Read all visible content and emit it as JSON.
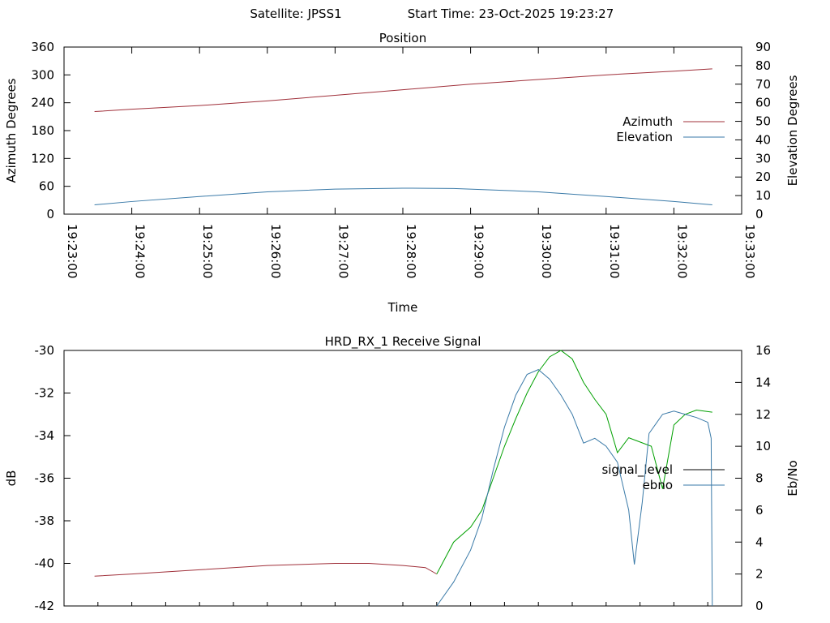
{
  "header": {
    "satellite_label": "Satellite: JPSS1",
    "start_time_label": "Start Time: 23-Oct-2025 19:23:27"
  },
  "chart_data": [
    {
      "type": "line",
      "title": "Position",
      "xlabel": "Time",
      "ylabel": "Azimuth Degrees",
      "y2label": "Elevation Degrees",
      "xlim": [
        "19:23:00",
        "19:33:00"
      ],
      "x_ticks": [
        "19:23:00",
        "19:24:00",
        "19:25:00",
        "19:26:00",
        "19:27:00",
        "19:28:00",
        "19:29:00",
        "19:30:00",
        "19:31:00",
        "19:32:00",
        "19:33:00"
      ],
      "ylim": [
        0,
        360
      ],
      "y_ticks": [
        0,
        60,
        120,
        180,
        240,
        300,
        360
      ],
      "y2lim": [
        0,
        90
      ],
      "y2_ticks": [
        0,
        10,
        20,
        30,
        40,
        50,
        60,
        70,
        80,
        90
      ],
      "grid": false,
      "legend_position": "right",
      "series": [
        {
          "name": "Azimuth",
          "axis": "y",
          "color": "#a0303a",
          "x": [
            "19:23:27",
            "19:24:00",
            "19:25:00",
            "19:26:00",
            "19:27:00",
            "19:28:00",
            "19:29:00",
            "19:30:00",
            "19:31:00",
            "19:32:00",
            "19:32:34"
          ],
          "values": [
            221,
            226,
            234,
            244,
            256,
            268,
            280,
            290,
            300,
            308,
            313
          ]
        },
        {
          "name": "Elevation",
          "axis": "y2",
          "color": "#3a7aa8",
          "x": [
            "19:23:27",
            "19:24:00",
            "19:25:00",
            "19:26:00",
            "19:27:00",
            "19:28:00",
            "19:28:45",
            "19:29:30",
            "19:30:00",
            "19:31:00",
            "19:32:00",
            "19:32:34"
          ],
          "values": [
            5,
            6.8,
            9.5,
            12,
            13.5,
            14,
            13.8,
            12.8,
            12,
            9.5,
            6.8,
            5
          ]
        }
      ]
    },
    {
      "type": "line",
      "title": "HRD_RX_1 Receive Signal",
      "xlabel": "",
      "ylabel": "dB",
      "y2label": "Eb/No",
      "xlim": [
        "19:23:00",
        "19:33:00"
      ],
      "ylim": [
        -42,
        -30
      ],
      "y_ticks": [
        -42,
        -40,
        -38,
        -36,
        -34,
        -32,
        -30
      ],
      "y2lim": [
        0,
        16
      ],
      "y2_ticks": [
        0,
        2,
        4,
        6,
        8,
        10,
        12,
        14,
        16
      ],
      "grid": false,
      "legend_position": "right",
      "series": [
        {
          "name": "signal_level",
          "axis": "y",
          "colors": [
            "#a0303a",
            "#00a000"
          ],
          "x": [
            "19:23:27",
            "19:24:00",
            "19:25:00",
            "19:26:00",
            "19:27:00",
            "19:27:30",
            "19:28:00",
            "19:28:20",
            "19:28:30",
            "19:28:45",
            "19:29:00",
            "19:29:10",
            "19:29:20",
            "19:29:30",
            "19:29:40",
            "19:29:50",
            "19:30:00",
            "19:30:10",
            "19:30:20",
            "19:30:30",
            "19:30:40",
            "19:30:50",
            "19:31:00",
            "19:31:10",
            "19:31:20",
            "19:31:30",
            "19:31:40",
            "19:31:50",
            "19:32:00",
            "19:32:10",
            "19:32:20",
            "19:32:34"
          ],
          "values": [
            -40.6,
            -40.5,
            -40.3,
            -40.1,
            -40.0,
            -40.0,
            -40.1,
            -40.2,
            -40.5,
            -39.0,
            -38.3,
            -37.5,
            -36.0,
            -34.5,
            -33.2,
            -32.0,
            -31.0,
            -30.3,
            -30.0,
            -30.4,
            -31.5,
            -32.3,
            -33.0,
            -34.8,
            -34.1,
            -34.3,
            -34.5,
            -36.5,
            -33.5,
            -33.0,
            -32.8,
            -32.9
          ]
        },
        {
          "name": "ebno",
          "axis": "y2",
          "color": "#3a7aa8",
          "x": [
            "19:28:30",
            "19:28:45",
            "19:29:00",
            "19:29:10",
            "19:29:20",
            "19:29:30",
            "19:29:40",
            "19:29:50",
            "19:30:00",
            "19:30:10",
            "19:30:20",
            "19:30:30",
            "19:30:40",
            "19:30:50",
            "19:31:00",
            "19:31:10",
            "19:31:20",
            "19:31:25",
            "19:31:32",
            "19:31:38",
            "19:31:45",
            "19:31:50",
            "19:32:00",
            "19:32:10",
            "19:32:20",
            "19:32:30",
            "19:32:33",
            "19:32:34"
          ],
          "values": [
            0,
            1.5,
            3.5,
            5.5,
            8.5,
            11.2,
            13.2,
            14.5,
            14.8,
            14.2,
            13.2,
            12.0,
            10.2,
            10.5,
            10.0,
            9.0,
            6.0,
            2.6,
            6.5,
            10.8,
            11.5,
            12.0,
            12.2,
            12.0,
            11.8,
            11.5,
            10.5,
            0
          ]
        }
      ]
    }
  ]
}
